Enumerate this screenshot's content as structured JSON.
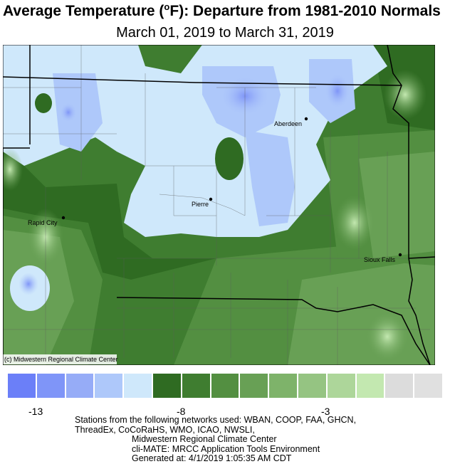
{
  "title": {
    "prefix": "Average Temperature (",
    "degree": "o",
    "suffix": "F): Departure from 1981-2010 Normals"
  },
  "subtitle": "March 01, 2019 to March 31, 2019",
  "map": {
    "cities": [
      {
        "name": "Aberdeen"
      },
      {
        "name": "Pierre"
      },
      {
        "name": "Rapid City"
      },
      {
        "name": "Sioux Falls"
      }
    ],
    "credit": "(c) Midwestern Regional Climate Center"
  },
  "legend": {
    "colors": [
      "#6b7ff8",
      "#7f95f8",
      "#96acf7",
      "#aec8fa",
      "#cfe8fb",
      "#2f6b22",
      "#3f7d30",
      "#538f41",
      "#68a055",
      "#7eb36a",
      "#95c482",
      "#add69a",
      "#c3e8b0",
      "#dcdcdc",
      "#e0e0e0"
    ],
    "tick_labels": [
      "-13",
      "-8",
      "-3"
    ]
  },
  "footer": {
    "line1": "Stations from the following networks used: WBAN, COOP, FAA, GHCN,",
    "line2": "ThreadEx, CoCoRaHS, WMO, ICAO, NWSLI,",
    "line3": "Midwestern Regional Climate Center",
    "line4": "cli-MATE: MRCC Application Tools Environment",
    "line5": "Generated at: 4/1/2019 1:05:35 AM CDT"
  }
}
